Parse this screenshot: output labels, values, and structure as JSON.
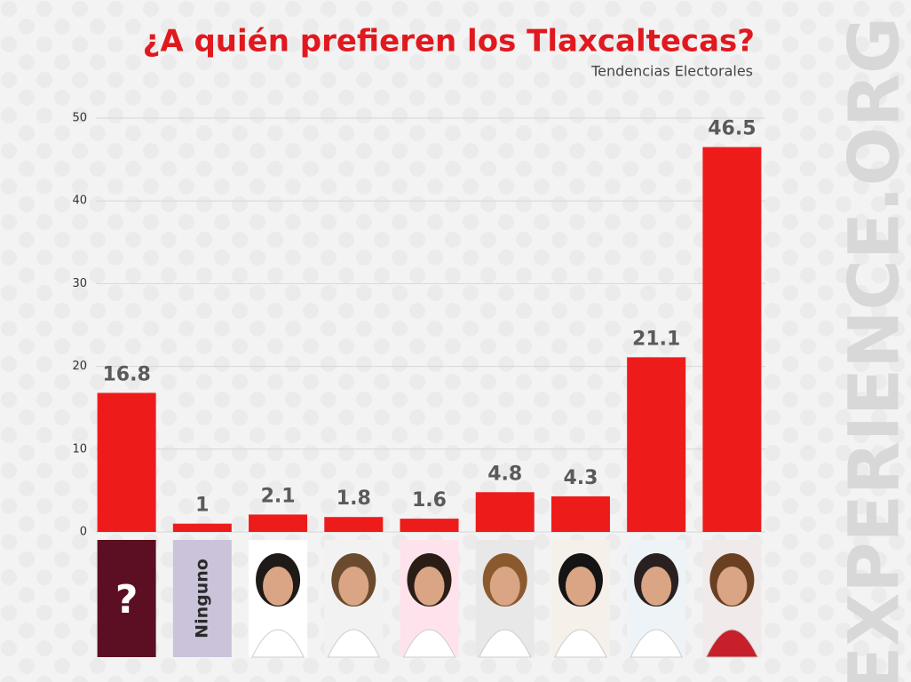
{
  "chart_data": {
    "type": "bar",
    "title": "¿A quién prefieren los Tlaxcaltecas?",
    "subtitle": "Tendencias Electorales",
    "watermark": "EXPERIENCE.ORG",
    "categories": [
      "?",
      "Ninguno",
      null,
      null,
      null,
      null,
      null,
      null,
      null
    ],
    "values": [
      16.8,
      1,
      2.1,
      1.8,
      1.6,
      4.8,
      4.3,
      21.1,
      46.5
    ],
    "color": "#ee1b1b",
    "ylim": [
      0,
      50
    ],
    "yticks": [
      0,
      10,
      20,
      30,
      40,
      50
    ],
    "grid": true
  }
}
